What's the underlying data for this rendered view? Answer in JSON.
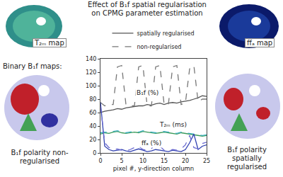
{
  "chart_data": {
    "type": "line",
    "title": "Effect of B₁f spatial regularisation on CPMG parameter estimation",
    "x_label": "pixel #, y-direction column",
    "x": [
      0,
      1,
      2,
      3,
      4,
      5,
      6,
      7,
      8,
      9,
      10,
      11,
      12,
      13,
      14,
      15,
      16,
      17,
      18,
      19,
      20,
      21,
      22,
      23,
      24,
      25
    ],
    "series": [
      {
        "name": "spatially regularised",
        "color": "#555555",
        "line_style": "solid",
        "values": [
          60,
          62,
          63,
          64,
          66,
          65,
          67,
          68,
          69,
          70,
          70,
          72,
          71,
          73,
          74,
          72,
          74,
          75,
          74,
          76,
          77,
          78,
          80,
          82,
          85,
          84
        ]
      },
      {
        "name": "non-regularised",
        "color": "#777777",
        "line_style": "dash",
        "values": [
          75,
          70,
          72,
          72,
          128,
          130,
          72,
          70,
          70,
          128,
          130,
          70,
          70,
          128,
          130,
          72,
          72,
          128,
          130,
          72,
          74,
          125,
          130,
          76,
          80,
          80
        ]
      },
      {
        "name": "spatially regularised",
        "color": "#3a9a5a",
        "line_style": "solid",
        "values": [
          28,
          30,
          29,
          31,
          32,
          30,
          29,
          30,
          31,
          30,
          32,
          31,
          30,
          29,
          30,
          31,
          30,
          29,
          28,
          30,
          29,
          28,
          27,
          26,
          25,
          26
        ]
      },
      {
        "name": "non-regularised",
        "color": "#40b0c0",
        "line_style": "dash",
        "values": [
          30,
          31,
          30,
          32,
          33,
          31,
          30,
          31,
          32,
          31,
          33,
          32,
          31,
          30,
          31,
          32,
          31,
          30,
          29,
          31,
          30,
          29,
          28,
          27,
          26,
          27
        ]
      },
      {
        "name": "spatially regularised",
        "color": "#3040b0",
        "line_style": "solid",
        "values": [
          75,
          10,
          5,
          3,
          4,
          5,
          3,
          2,
          4,
          6,
          4,
          2,
          3,
          5,
          4,
          3,
          2,
          4,
          3,
          2,
          5,
          15,
          28,
          5,
          10,
          12
        ]
      },
      {
        "name": "non-regularised",
        "color": "#6a6ad0",
        "line_style": "dash",
        "values": [
          70,
          15,
          8,
          5,
          6,
          4,
          3,
          5,
          8,
          10,
          5,
          4,
          6,
          15,
          10,
          4,
          3,
          5,
          4,
          6,
          12,
          26,
          8,
          6,
          14,
          16
        ]
      }
    ],
    "annotations": [
      {
        "text": "B₁f (%)",
        "x": 11,
        "y": 90
      },
      {
        "text": "T₂ₘ (ms)",
        "x": 17,
        "y": 42
      },
      {
        "text": "ffₐ (%)",
        "x": 12,
        "y": 15
      }
    ],
    "xlim": [
      0,
      25
    ],
    "xticks": [
      0,
      5,
      10,
      15,
      20,
      25
    ],
    "ylim": [
      0,
      140
    ],
    "yticks": [
      0,
      20,
      40,
      60,
      80,
      100,
      120,
      140
    ],
    "grid": false,
    "legend": "top"
  },
  "panels": {
    "top_left": "T₂ₘ map",
    "top_right": "ffₐ map",
    "binary_heading": "Binary B₁f maps:",
    "bottom_left": "B₁f polarity non-regularised",
    "bottom_right": "B₁f polarity spatially regularised"
  }
}
